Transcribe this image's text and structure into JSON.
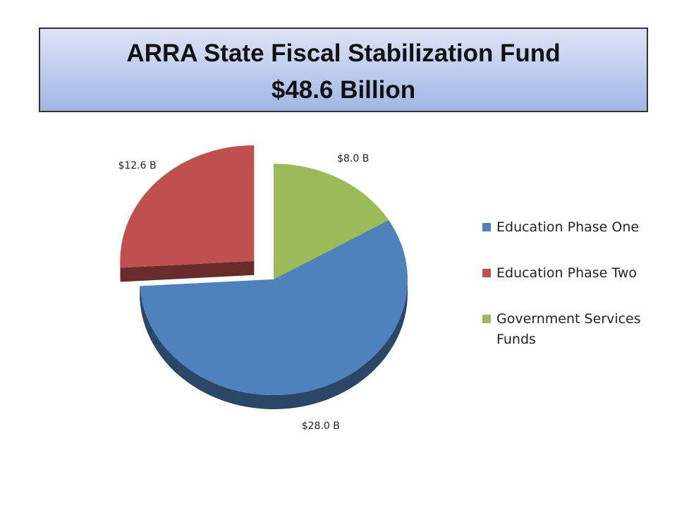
{
  "chart_data": {
    "type": "pie",
    "title": "ARRA State Fiscal Stabilization Fund",
    "subtitle": "$48.6 Billion",
    "categories": [
      "Education Phase One",
      "Education Phase Two",
      "Government Services Funds"
    ],
    "values": [
      28.0,
      12.6,
      8.0
    ],
    "value_labels": [
      "$28.0 B",
      "$12.6 B",
      "$8.0 B"
    ],
    "colors": [
      "#4f81bd",
      "#c0504d",
      "#9bbb59"
    ],
    "exploded": [
      false,
      true,
      false
    ],
    "legend": "right"
  }
}
